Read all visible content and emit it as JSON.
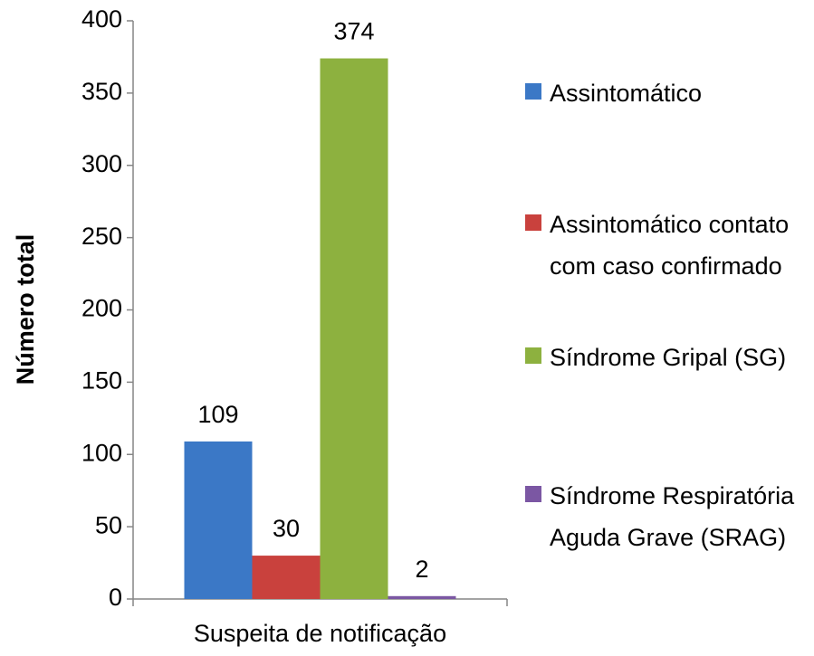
{
  "chart_data": {
    "type": "bar",
    "categories": [
      "Suspeita de notificação"
    ],
    "y_label": "Número total",
    "series": [
      {
        "name": "Assintomático",
        "color": "#3b78c6",
        "values": [
          109
        ]
      },
      {
        "name": "Assintomático contato com caso confirmado",
        "color": "#c9413d",
        "values": [
          30
        ]
      },
      {
        "name": "Síndrome Gripal (SG)",
        "color": "#8db13f",
        "values": [
          374
        ]
      },
      {
        "name": "Síndrome Respiratória Aguda Grave (SRAG)",
        "color": "#7b57a3",
        "values": [
          2
        ]
      }
    ],
    "ylim": [
      0,
      400
    ],
    "yticks": [
      0,
      50,
      100,
      150,
      200,
      250,
      300,
      350,
      400
    ],
    "legend": "right",
    "grid": false
  }
}
